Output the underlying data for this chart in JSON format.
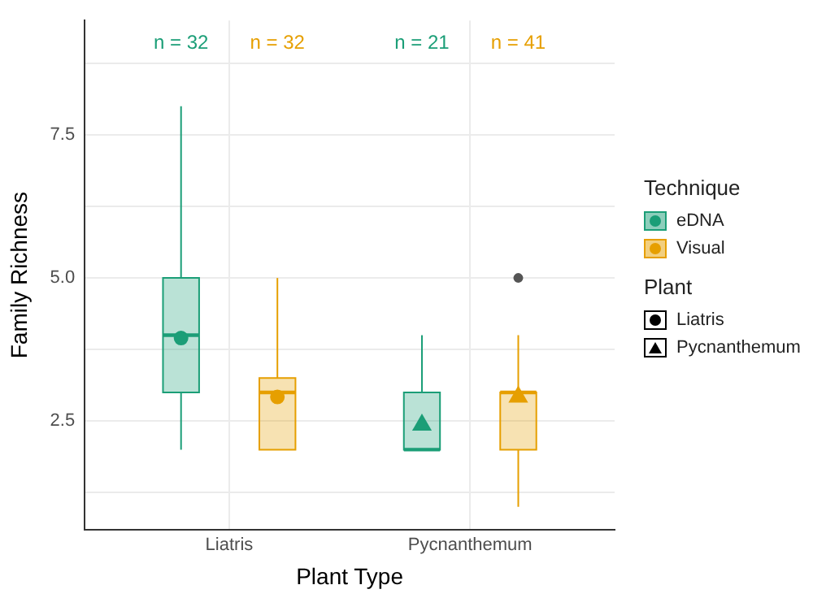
{
  "chart_data": {
    "type": "box",
    "xlabel": "Plant Type",
    "ylabel": "Family Richness",
    "legend_title": [
      "Technique",
      "Plant"
    ],
    "categories": [
      "Liatris",
      "Pycnanthemum"
    ],
    "marker": [
      "circle",
      "triangle"
    ],
    "series": [
      {
        "name": "eDNA",
        "color": "#1b9e77",
        "value_labels": [
          "n = 32",
          "n = 21"
        ],
        "boxes": [
          {
            "low": 2,
            "q1": 3,
            "median": 4,
            "q3": 5,
            "high": 8,
            "mean": 3.95
          },
          {
            "low": 2,
            "q1": 2,
            "median": 2,
            "q3": 3,
            "high": 4,
            "mean": 2.43
          }
        ]
      },
      {
        "name": "Visual",
        "color": "#e69f00",
        "value_labels": [
          "n = 32",
          "n = 41"
        ],
        "boxes": [
          {
            "low": 2,
            "q1": 2,
            "median": 3,
            "q3": 3.25,
            "high": 5,
            "mean": 2.92
          },
          {
            "low": 1,
            "q1": 2,
            "median": 3,
            "q3": 3,
            "high": 4,
            "mean": 2.92,
            "outliers": [
              5
            ]
          }
        ]
      }
    ],
    "ylim": [
      0.6,
      9.5
    ],
    "yticks": [
      {
        "value": 1.25,
        "label": null
      },
      {
        "value": 2.5,
        "label": "2.5"
      },
      {
        "value": 3.75,
        "label": null
      },
      {
        "value": 5,
        "label": "5.0"
      },
      {
        "value": 6.25,
        "label": null
      },
      {
        "value": 7.5,
        "label": "7.5"
      },
      {
        "value": 8.75,
        "label": null
      }
    ],
    "grid": true,
    "legend": "right"
  }
}
